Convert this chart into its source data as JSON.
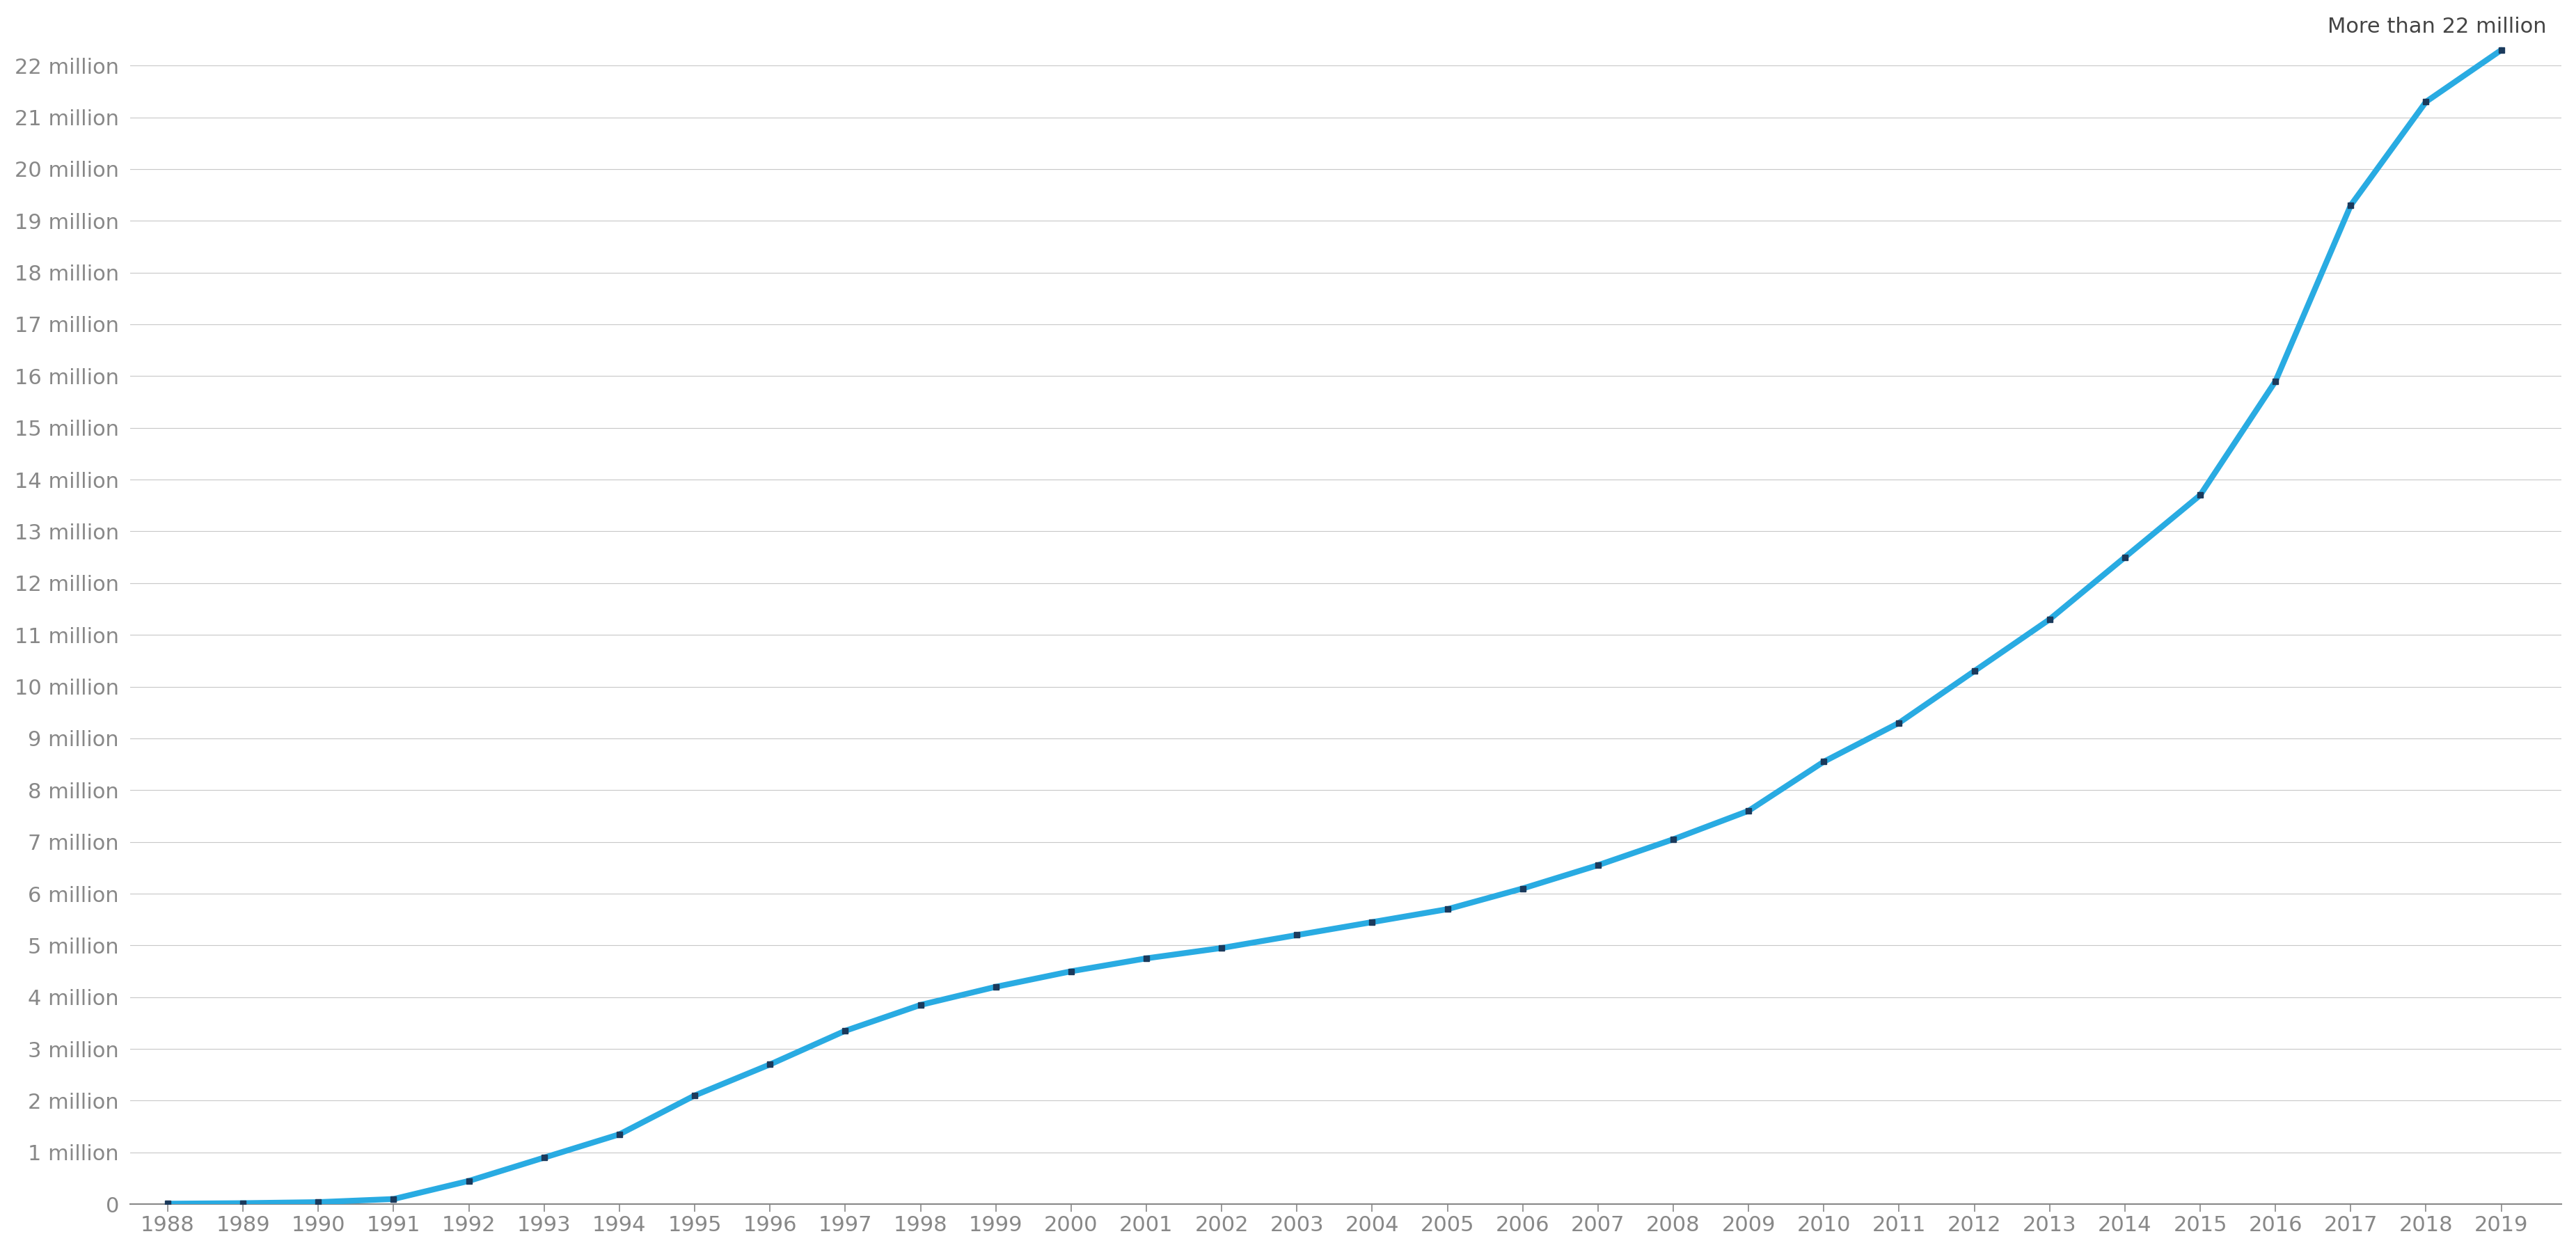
{
  "years": [
    1988,
    1989,
    1990,
    1991,
    1992,
    1993,
    1994,
    1995,
    1996,
    1997,
    1998,
    1999,
    2000,
    2001,
    2002,
    2003,
    2004,
    2005,
    2006,
    2007,
    2008,
    2009,
    2010,
    2011,
    2012,
    2013,
    2014,
    2015,
    2016,
    2017,
    2018,
    2019
  ],
  "values": [
    0.01,
    0.02,
    0.04,
    0.1,
    0.45,
    0.9,
    1.35,
    2.1,
    2.7,
    3.35,
    3.85,
    4.2,
    4.5,
    4.75,
    4.95,
    5.2,
    5.45,
    5.7,
    6.1,
    6.55,
    7.05,
    7.6,
    8.55,
    9.3,
    10.3,
    11.3,
    12.5,
    13.7,
    15.9,
    19.3,
    21.3,
    22.3
  ],
  "line_color": "#29abe2",
  "marker_color": "#1b3a5c",
  "annotation_text": "More than 22 million",
  "background_color": "#ffffff",
  "grid_color": "#c8c8c8",
  "ytick_labels": [
    "0",
    "1 million",
    "2 million",
    "3 million",
    "4 million",
    "5 million",
    "6 million",
    "7 million",
    "8 million",
    "9 million",
    "10 million",
    "11 million",
    "12 million",
    "13 million",
    "14 million",
    "15 million",
    "16 million",
    "17 million",
    "18 million",
    "19 million",
    "20 million",
    "21 million",
    "22 million"
  ],
  "ytick_values": [
    0,
    1,
    2,
    3,
    4,
    5,
    6,
    7,
    8,
    9,
    10,
    11,
    12,
    13,
    14,
    15,
    16,
    17,
    18,
    19,
    20,
    21,
    22
  ],
  "ylim": [
    0,
    22.8
  ],
  "xlim_min": 1987.5,
  "xlim_max": 2019.8,
  "tick_color": "#888888",
  "spine_color": "#888888",
  "line_width": 6,
  "marker_size": 6,
  "tick_fontsize": 22,
  "annotation_fontsize": 22
}
